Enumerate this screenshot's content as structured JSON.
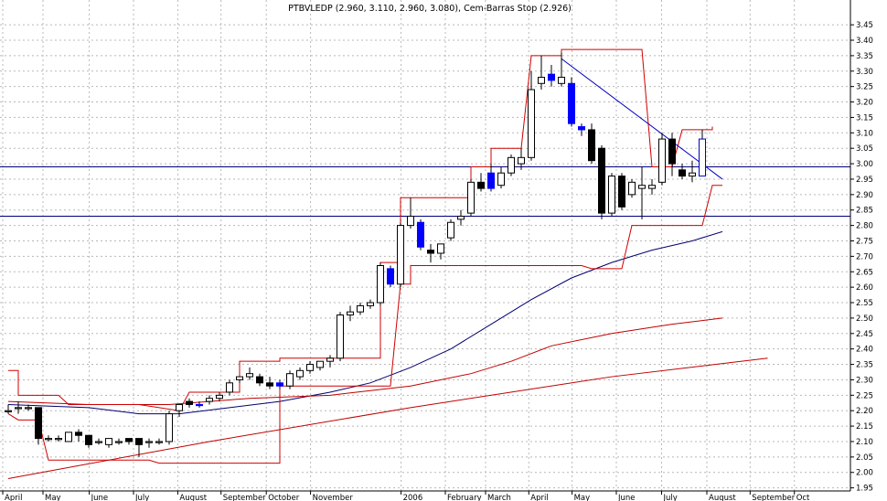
{
  "chart_data": {
    "type": "candlestick",
    "title": "PTBVLEDP (2.960, 3.110, 2.960, 3.080), Cem-Barras Stop (2.926)",
    "ylim": [
      1.94,
      3.48
    ],
    "y_ticks": [
      "1.95",
      "2.00",
      "2.05",
      "2.10",
      "2.15",
      "2.20",
      "2.25",
      "2.30",
      "2.35",
      "2.40",
      "2.45",
      "2.50",
      "2.55",
      "2.60",
      "2.65",
      "2.70",
      "2.75",
      "2.80",
      "2.85",
      "2.90",
      "2.95",
      "3.00",
      "3.05",
      "3.10",
      "3.15",
      "3.20",
      "3.25",
      "3.30",
      "3.35",
      "3.40",
      "3.45"
    ],
    "x_labels": [
      {
        "label": "April",
        "week": 0
      },
      {
        "label": "May",
        "week": 4
      },
      {
        "label": "June",
        "week": 8.6
      },
      {
        "label": "July",
        "week": 13
      },
      {
        "label": "August",
        "week": 17.4
      },
      {
        "label": "September",
        "week": 21.7
      },
      {
        "label": "October",
        "week": 26.2
      },
      {
        "label": "November",
        "week": 30.6
      },
      {
        "label": "2006",
        "week": 39.6
      },
      {
        "label": "February",
        "week": 44
      },
      {
        "label": "March",
        "week": 48
      },
      {
        "label": "April",
        "week": 52.3
      },
      {
        "label": "May",
        "week": 56.6
      },
      {
        "label": "June",
        "week": 61
      },
      {
        "label": "July",
        "week": 65.5
      },
      {
        "label": "August",
        "week": 70
      },
      {
        "label": "September",
        "week": 74.3
      },
      {
        "label": "Oct",
        "week": 78.7
      }
    ],
    "candles": [
      {
        "o": 2.2,
        "h": 2.22,
        "l": 2.19,
        "c": 2.2
      },
      {
        "o": 2.21,
        "h": 2.23,
        "l": 2.19,
        "c": 2.21
      },
      {
        "o": 2.21,
        "h": 2.22,
        "l": 2.2,
        "c": 2.21
      },
      {
        "o": 2.21,
        "h": 2.21,
        "l": 2.09,
        "c": 2.11
      },
      {
        "o": 2.11,
        "h": 2.12,
        "l": 2.1,
        "c": 2.11
      },
      {
        "o": 2.11,
        "h": 2.12,
        "l": 2.1,
        "c": 2.11
      },
      {
        "o": 2.1,
        "h": 2.13,
        "l": 2.1,
        "c": 2.13
      },
      {
        "o": 2.13,
        "h": 2.14,
        "l": 2.1,
        "c": 2.12
      },
      {
        "o": 2.12,
        "h": 2.12,
        "l": 2.08,
        "c": 2.09
      },
      {
        "o": 2.1,
        "h": 2.11,
        "l": 2.09,
        "c": 2.1
      },
      {
        "o": 2.09,
        "h": 2.11,
        "l": 2.08,
        "c": 2.11
      },
      {
        "o": 2.1,
        "h": 2.11,
        "l": 2.09,
        "c": 2.1
      },
      {
        "o": 2.11,
        "h": 2.11,
        "l": 2.09,
        "c": 2.1
      },
      {
        "o": 2.11,
        "h": 2.11,
        "l": 2.05,
        "c": 2.09
      },
      {
        "o": 2.1,
        "h": 2.11,
        "l": 2.08,
        "c": 2.1
      },
      {
        "o": 2.1,
        "h": 2.11,
        "l": 2.09,
        "c": 2.1
      },
      {
        "o": 2.1,
        "h": 2.2,
        "l": 2.09,
        "c": 2.19
      },
      {
        "o": 2.2,
        "h": 2.22,
        "l": 2.18,
        "c": 2.22
      },
      {
        "o": 2.23,
        "h": 2.24,
        "l": 2.21,
        "c": 2.22
      },
      {
        "o": 2.22,
        "h": 2.23,
        "l": 2.21,
        "c": 2.22
      },
      {
        "o": 2.23,
        "h": 2.25,
        "l": 2.22,
        "c": 2.24
      },
      {
        "o": 2.24,
        "h": 2.26,
        "l": 2.23,
        "c": 2.25
      },
      {
        "o": 2.26,
        "h": 2.3,
        "l": 2.25,
        "c": 2.29
      },
      {
        "o": 2.3,
        "h": 2.31,
        "l": 2.29,
        "c": 2.31
      },
      {
        "o": 2.31,
        "h": 2.34,
        "l": 2.3,
        "c": 2.32
      },
      {
        "o": 2.31,
        "h": 2.32,
        "l": 2.28,
        "c": 2.29
      },
      {
        "o": 2.29,
        "h": 2.31,
        "l": 2.27,
        "c": 2.28
      },
      {
        "o": 2.28,
        "h": 2.3,
        "l": 2.27,
        "c": 2.29
      },
      {
        "o": 2.28,
        "h": 2.33,
        "l": 2.27,
        "c": 2.32
      },
      {
        "o": 2.31,
        "h": 2.34,
        "l": 2.3,
        "c": 2.33
      },
      {
        "o": 2.33,
        "h": 2.36,
        "l": 2.32,
        "c": 2.35
      },
      {
        "o": 2.34,
        "h": 2.36,
        "l": 2.33,
        "c": 2.36
      },
      {
        "o": 2.36,
        "h": 2.38,
        "l": 2.34,
        "c": 2.37
      },
      {
        "o": 2.37,
        "h": 2.52,
        "l": 2.36,
        "c": 2.51
      },
      {
        "o": 2.51,
        "h": 2.54,
        "l": 2.49,
        "c": 2.52
      },
      {
        "o": 2.52,
        "h": 2.55,
        "l": 2.51,
        "c": 2.54
      },
      {
        "o": 2.54,
        "h": 2.56,
        "l": 2.53,
        "c": 2.55
      },
      {
        "o": 2.55,
        "h": 2.68,
        "l": 2.54,
        "c": 2.67
      },
      {
        "o": 2.66,
        "h": 2.67,
        "l": 2.6,
        "c": 2.61
      },
      {
        "o": 2.61,
        "h": 2.81,
        "l": 2.6,
        "c": 2.8
      },
      {
        "o": 2.8,
        "h": 2.89,
        "l": 2.79,
        "c": 2.83
      },
      {
        "o": 2.81,
        "h": 2.82,
        "l": 2.72,
        "c": 2.73
      },
      {
        "o": 2.72,
        "h": 2.74,
        "l": 2.68,
        "c": 2.71
      },
      {
        "o": 2.71,
        "h": 2.74,
        "l": 2.69,
        "c": 2.74
      },
      {
        "o": 2.76,
        "h": 2.82,
        "l": 2.75,
        "c": 2.81
      },
      {
        "o": 2.82,
        "h": 2.85,
        "l": 2.8,
        "c": 2.83
      },
      {
        "o": 2.84,
        "h": 2.95,
        "l": 2.83,
        "c": 2.94
      },
      {
        "o": 2.94,
        "h": 2.97,
        "l": 2.91,
        "c": 2.92
      },
      {
        "o": 2.92,
        "h": 3.0,
        "l": 2.91,
        "c": 2.97
      },
      {
        "o": 2.93,
        "h": 2.99,
        "l": 2.92,
        "c": 2.97
      },
      {
        "o": 2.97,
        "h": 3.03,
        "l": 2.96,
        "c": 3.02
      },
      {
        "o": 3.0,
        "h": 3.05,
        "l": 2.98,
        "c": 3.02
      },
      {
        "o": 3.02,
        "h": 3.3,
        "l": 3.01,
        "c": 3.24
      },
      {
        "o": 3.26,
        "h": 3.35,
        "l": 3.24,
        "c": 3.28
      },
      {
        "o": 3.29,
        "h": 3.32,
        "l": 3.25,
        "c": 3.27
      },
      {
        "o": 3.26,
        "h": 3.36,
        "l": 3.25,
        "c": 3.28
      },
      {
        "o": 3.26,
        "h": 3.28,
        "l": 3.12,
        "c": 3.13
      },
      {
        "o": 3.12,
        "h": 3.13,
        "l": 3.09,
        "c": 3.11
      },
      {
        "o": 3.11,
        "h": 3.13,
        "l": 3.0,
        "c": 3.01
      },
      {
        "o": 3.05,
        "h": 3.06,
        "l": 2.82,
        "c": 2.84
      },
      {
        "o": 2.84,
        "h": 2.97,
        "l": 2.83,
        "c": 2.96
      },
      {
        "o": 2.96,
        "h": 2.97,
        "l": 2.85,
        "c": 2.86
      },
      {
        "o": 2.9,
        "h": 2.95,
        "l": 2.89,
        "c": 2.94
      },
      {
        "o": 2.92,
        "h": 2.99,
        "l": 2.82,
        "c": 2.93
      },
      {
        "o": 2.92,
        "h": 2.95,
        "l": 2.9,
        "c": 2.93
      },
      {
        "o": 2.94,
        "h": 3.1,
        "l": 2.93,
        "c": 3.08
      },
      {
        "o": 3.08,
        "h": 3.1,
        "l": 2.96,
        "c": 3.0
      },
      {
        "o": 2.98,
        "h": 3.0,
        "l": 2.95,
        "c": 2.96
      },
      {
        "o": 2.96,
        "h": 3.01,
        "l": 2.94,
        "c": 2.97
      },
      {
        "o": 2.96,
        "h": 3.11,
        "l": 2.96,
        "c": 3.08
      }
    ],
    "filled_bodies": [
      {
        "week": 19,
        "color": "#0000ff"
      },
      {
        "week": 27,
        "color": "#0000ff"
      },
      {
        "week": 38,
        "color": "#0000ff"
      },
      {
        "week": 41,
        "color": "#0000ff"
      },
      {
        "week": 48,
        "color": "#0000ff"
      },
      {
        "week": 54,
        "color": "#0000ff"
      },
      {
        "week": 56,
        "color": "#0000ff"
      },
      {
        "week": 57,
        "color": "#0000ff"
      }
    ],
    "stop_upper": [
      [
        0,
        2.33
      ],
      [
        1,
        2.33
      ],
      [
        1,
        2.25
      ],
      [
        2,
        2.25
      ],
      [
        3,
        2.25
      ],
      [
        4,
        2.25
      ],
      [
        5,
        2.25
      ],
      [
        6,
        2.22
      ],
      [
        13,
        2.22
      ],
      [
        17,
        2.2
      ],
      [
        18,
        2.26
      ],
      [
        23,
        2.26
      ],
      [
        23,
        2.36
      ],
      [
        27,
        2.36
      ],
      [
        27,
        2.37
      ],
      [
        37,
        2.37
      ],
      [
        37,
        2.68
      ],
      [
        39,
        2.68
      ],
      [
        39,
        2.89
      ],
      [
        46,
        2.89
      ],
      [
        46,
        2.99
      ],
      [
        48,
        2.99
      ],
      [
        48,
        3.05
      ],
      [
        51,
        3.05
      ],
      [
        52,
        3.35
      ],
      [
        55,
        3.35
      ],
      [
        55,
        3.37
      ],
      [
        63,
        3.37
      ],
      [
        64,
        2.99
      ],
      [
        66,
        2.99
      ],
      [
        67,
        3.11
      ],
      [
        70,
        3.11
      ],
      [
        70,
        3.12
      ]
    ],
    "stop_lower": [
      [
        0,
        2.19
      ],
      [
        1,
        2.17
      ],
      [
        3,
        2.17
      ],
      [
        4,
        2.04
      ],
      [
        14,
        2.04
      ],
      [
        15,
        2.03
      ],
      [
        27,
        2.03
      ],
      [
        27,
        2.28
      ],
      [
        38,
        2.28
      ],
      [
        39,
        2.61
      ],
      [
        40,
        2.61
      ],
      [
        40,
        2.67
      ],
      [
        57,
        2.67
      ],
      [
        58,
        2.66
      ],
      [
        61,
        2.66
      ],
      [
        62,
        2.8
      ],
      [
        69,
        2.8
      ],
      [
        70,
        2.93
      ],
      [
        71,
        2.93
      ]
    ],
    "moving_averages": [
      {
        "name": "",
        "color": "#00006f",
        "points": [
          [
            0,
            2.22
          ],
          [
            8,
            2.21
          ],
          [
            13,
            2.19
          ],
          [
            17,
            2.19
          ],
          [
            22,
            2.21
          ],
          [
            27,
            2.23
          ],
          [
            32,
            2.26
          ],
          [
            36,
            2.29
          ],
          [
            40,
            2.34
          ],
          [
            44,
            2.4
          ],
          [
            48,
            2.48
          ],
          [
            52,
            2.56
          ],
          [
            56,
            2.63
          ],
          [
            60,
            2.68
          ],
          [
            64,
            2.72
          ],
          [
            68,
            2.75
          ],
          [
            71,
            2.78
          ]
        ]
      },
      {
        "name": "",
        "color": "#c00000",
        "points": [
          [
            0,
            2.23
          ],
          [
            8,
            2.22
          ],
          [
            16,
            2.22
          ],
          [
            24,
            2.24
          ],
          [
            32,
            2.25
          ],
          [
            40,
            2.28
          ],
          [
            46,
            2.32
          ],
          [
            50,
            2.36
          ],
          [
            54,
            2.41
          ],
          [
            60,
            2.45
          ],
          [
            66,
            2.48
          ],
          [
            71,
            2.5
          ]
        ]
      },
      {
        "name": "",
        "color": "#c00000",
        "points": [
          [
            0,
            1.98
          ],
          [
            20,
            2.1
          ],
          [
            40,
            2.21
          ],
          [
            60,
            2.31
          ],
          [
            75.5,
            2.37
          ]
        ]
      }
    ],
    "trendline": {
      "color": "#0000c0",
      "points": [
        [
          55,
          3.34
        ],
        [
          71,
          2.95
        ]
      ]
    },
    "horizontal_lines": [
      {
        "value": 2.99,
        "color": "#000080"
      },
      {
        "value": 2.83,
        "color": "#000080"
      }
    ],
    "grid": true
  }
}
